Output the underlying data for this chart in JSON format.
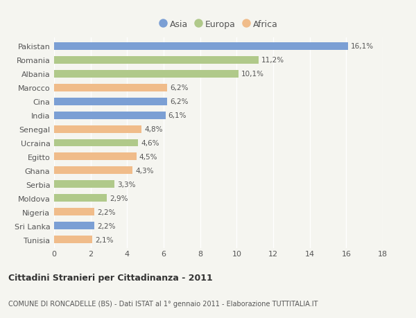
{
  "categories": [
    "Tunisia",
    "Sri Lanka",
    "Nigeria",
    "Moldova",
    "Serbia",
    "Ghana",
    "Egitto",
    "Ucraina",
    "Senegal",
    "India",
    "Cina",
    "Marocco",
    "Albania",
    "Romania",
    "Pakistan"
  ],
  "values": [
    2.1,
    2.2,
    2.2,
    2.9,
    3.3,
    4.3,
    4.5,
    4.6,
    4.8,
    6.1,
    6.2,
    6.2,
    10.1,
    11.2,
    16.1
  ],
  "labels": [
    "2,1%",
    "2,2%",
    "2,2%",
    "2,9%",
    "3,3%",
    "4,3%",
    "4,5%",
    "4,6%",
    "4,8%",
    "6,1%",
    "6,2%",
    "6,2%",
    "10,1%",
    "11,2%",
    "16,1%"
  ],
  "continents": [
    "Africa",
    "Asia",
    "Africa",
    "Europa",
    "Europa",
    "Africa",
    "Africa",
    "Europa",
    "Africa",
    "Asia",
    "Asia",
    "Africa",
    "Europa",
    "Europa",
    "Asia"
  ],
  "colors": {
    "Asia": "#7b9fd4",
    "Europa": "#b0c98a",
    "Africa": "#f0bc8a"
  },
  "legend_labels": [
    "Asia",
    "Europa",
    "Africa"
  ],
  "xlim": [
    0,
    18
  ],
  "xticks": [
    0,
    2,
    4,
    6,
    8,
    10,
    12,
    14,
    16,
    18
  ],
  "title": "Cittadini Stranieri per Cittadinanza - 2011",
  "subtitle": "COMUNE DI RONCADELLE (BS) - Dati ISTAT al 1° gennaio 2011 - Elaborazione TUTTITALIA.IT",
  "background_color": "#f5f5f0",
  "bar_height": 0.55,
  "label_fontsize": 7.5,
  "ytick_fontsize": 8,
  "xtick_fontsize": 8,
  "title_fontsize": 9,
  "subtitle_fontsize": 7
}
